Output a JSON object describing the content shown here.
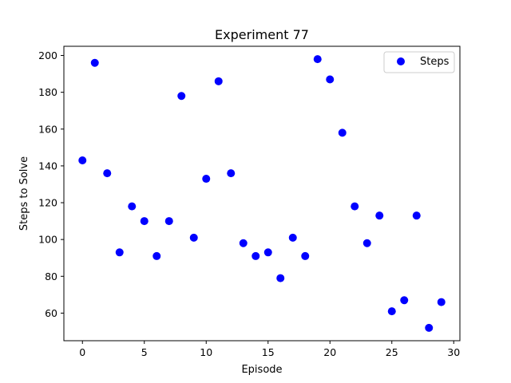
{
  "chart_data": {
    "type": "scatter",
    "title": "Experiment 77",
    "xlabel": "Episode",
    "ylabel": "Steps to Solve",
    "xlim": [
      -1.5,
      30.5
    ],
    "ylim": [
      45,
      205
    ],
    "xticks": [
      0,
      5,
      10,
      15,
      20,
      25,
      30
    ],
    "yticks": [
      60,
      80,
      100,
      120,
      140,
      160,
      180,
      200
    ],
    "grid": false,
    "legend_position": "top-right",
    "series": [
      {
        "name": "Steps",
        "color": "#0000ff",
        "marker": "circle",
        "x": [
          0,
          1,
          2,
          3,
          4,
          5,
          6,
          7,
          8,
          9,
          10,
          11,
          12,
          13,
          14,
          15,
          16,
          17,
          18,
          19,
          20,
          21,
          22,
          23,
          24,
          25,
          26,
          27,
          28,
          29
        ],
        "y": [
          143,
          196,
          136,
          93,
          118,
          110,
          91,
          110,
          178,
          101,
          133,
          186,
          136,
          98,
          91,
          93,
          79,
          101,
          91,
          198,
          187,
          158,
          118,
          98,
          113,
          61,
          67,
          113,
          52,
          66
        ]
      }
    ]
  }
}
